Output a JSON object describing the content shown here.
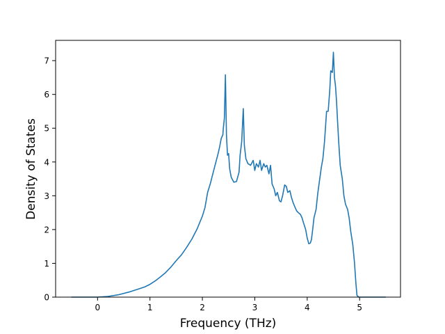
{
  "chart_data": {
    "type": "line",
    "title": "",
    "xlabel": "Frequency (THz)",
    "ylabel": "Density of States",
    "xlim": [
      -0.8,
      5.78
    ],
    "ylim": [
      0,
      7.6
    ],
    "xticks": [
      0,
      1,
      2,
      3,
      4,
      5
    ],
    "yticks": [
      0,
      1,
      2,
      3,
      4,
      5,
      6,
      7
    ],
    "grid": false,
    "series": [
      {
        "name": "",
        "color": "#1f77b4",
        "x": [
          -0.5,
          -0.2,
          0.0,
          0.2,
          0.4,
          0.6,
          0.8,
          0.9,
          1.0,
          1.1,
          1.2,
          1.3,
          1.4,
          1.5,
          1.6,
          1.7,
          1.8,
          1.9,
          2.0,
          2.05,
          2.1,
          2.15,
          2.2,
          2.25,
          2.3,
          2.33,
          2.36,
          2.39,
          2.4,
          2.42,
          2.44,
          2.46,
          2.48,
          2.5,
          2.52,
          2.55,
          2.6,
          2.65,
          2.7,
          2.72,
          2.75,
          2.78,
          2.8,
          2.83,
          2.87,
          2.92,
          2.97,
          3.0,
          3.03,
          3.07,
          3.1,
          3.13,
          3.17,
          3.2,
          3.23,
          3.27,
          3.3,
          3.33,
          3.37,
          3.4,
          3.43,
          3.47,
          3.5,
          3.53,
          3.57,
          3.6,
          3.63,
          3.67,
          3.7,
          3.73,
          3.77,
          3.8,
          3.83,
          3.87,
          3.9,
          3.93,
          3.97,
          4.0,
          4.03,
          4.06,
          4.08,
          4.1,
          4.13,
          4.17,
          4.2,
          4.23,
          4.27,
          4.3,
          4.33,
          4.37,
          4.4,
          4.43,
          4.45,
          4.48,
          4.5,
          4.52,
          4.54,
          4.56,
          4.58,
          4.6,
          4.63,
          4.67,
          4.7,
          4.73,
          4.77,
          4.8,
          4.83,
          4.87,
          4.9,
          4.93,
          4.95,
          4.97,
          4.98,
          5.0,
          5.1,
          5.3,
          5.5
        ],
        "y": [
          0,
          0,
          0,
          0.02,
          0.07,
          0.15,
          0.25,
          0.3,
          0.38,
          0.48,
          0.6,
          0.73,
          0.89,
          1.08,
          1.25,
          1.47,
          1.72,
          2.02,
          2.4,
          2.65,
          3.1,
          3.35,
          3.65,
          3.95,
          4.25,
          4.45,
          4.7,
          4.8,
          5.0,
          5.3,
          6.58,
          4.8,
          4.2,
          4.25,
          3.8,
          3.55,
          3.4,
          3.42,
          3.7,
          4.2,
          4.6,
          5.58,
          4.5,
          4.1,
          3.95,
          3.9,
          4.05,
          3.75,
          3.95,
          3.85,
          4.05,
          3.75,
          3.95,
          3.85,
          3.9,
          3.65,
          3.9,
          3.35,
          3.2,
          3.0,
          3.1,
          2.85,
          2.82,
          3.0,
          3.32,
          3.28,
          3.1,
          3.15,
          2.95,
          2.8,
          2.65,
          2.55,
          2.5,
          2.45,
          2.35,
          2.2,
          2.0,
          1.75,
          1.58,
          1.6,
          1.7,
          1.95,
          2.35,
          2.6,
          3.05,
          3.4,
          3.85,
          4.1,
          4.6,
          5.5,
          5.5,
          6.1,
          6.7,
          6.65,
          7.25,
          6.5,
          6.25,
          5.8,
          5.2,
          4.6,
          3.9,
          3.5,
          3.0,
          2.75,
          2.6,
          2.35,
          1.95,
          1.55,
          1.05,
          0.4,
          0.05,
          0.02,
          0,
          0,
          0,
          0,
          0
        ]
      }
    ]
  }
}
